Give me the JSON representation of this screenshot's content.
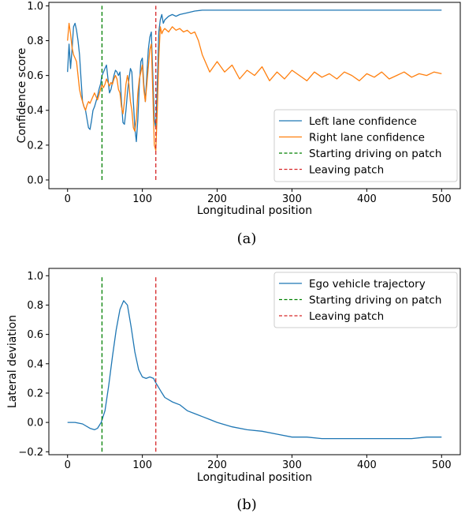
{
  "chart_data": [
    {
      "type": "line",
      "caption": "(a)",
      "xlabel": "Longitudinal position",
      "ylabel": "Confidence score",
      "xlim": [
        -25,
        525
      ],
      "ylim": [
        -0.05,
        1.02
      ],
      "xticks": [
        0,
        100,
        200,
        300,
        400,
        500
      ],
      "yticks": [
        0.0,
        0.2,
        0.4,
        0.6,
        0.8,
        1.0
      ],
      "xtick_labels": [
        "0",
        "100",
        "200",
        "300",
        "400",
        "500"
      ],
      "ytick_labels": [
        "0.0",
        "0.2",
        "0.4",
        "0.6",
        "0.8",
        "1.0"
      ],
      "grid": false,
      "legend_position": "lower-right",
      "series": [
        {
          "name": "Left lane confidence",
          "color": "#1f77b4",
          "style": "solid",
          "x": [
            0,
            2,
            4,
            6,
            8,
            10,
            12,
            14,
            16,
            18,
            20,
            22,
            24,
            26,
            28,
            30,
            32,
            34,
            36,
            38,
            40,
            42,
            44,
            46,
            48,
            50,
            52,
            54,
            56,
            58,
            60,
            62,
            64,
            66,
            68,
            70,
            72,
            74,
            76,
            78,
            80,
            82,
            84,
            86,
            88,
            90,
            92,
            94,
            96,
            98,
            100,
            102,
            104,
            106,
            108,
            110,
            112,
            114,
            116,
            118,
            120,
            122,
            124,
            126,
            128,
            130,
            135,
            140,
            145,
            150,
            160,
            170,
            180,
            200,
            250,
            300,
            350,
            400,
            450,
            500
          ],
          "y": [
            0.62,
            0.78,
            0.64,
            0.75,
            0.88,
            0.9,
            0.86,
            0.8,
            0.72,
            0.58,
            0.45,
            0.42,
            0.4,
            0.35,
            0.3,
            0.29,
            0.34,
            0.4,
            0.42,
            0.45,
            0.48,
            0.52,
            0.55,
            0.6,
            0.62,
            0.64,
            0.66,
            0.58,
            0.5,
            0.52,
            0.56,
            0.6,
            0.63,
            0.62,
            0.6,
            0.62,
            0.45,
            0.33,
            0.32,
            0.4,
            0.5,
            0.58,
            0.64,
            0.62,
            0.45,
            0.3,
            0.22,
            0.35,
            0.55,
            0.68,
            0.7,
            0.55,
            0.45,
            0.6,
            0.75,
            0.82,
            0.85,
            0.6,
            0.35,
            0.3,
            0.55,
            0.85,
            0.92,
            0.95,
            0.9,
            0.92,
            0.94,
            0.95,
            0.94,
            0.95,
            0.96,
            0.97,
            0.975,
            0.975,
            0.975,
            0.975,
            0.975,
            0.975,
            0.975,
            0.975
          ]
        },
        {
          "name": "Right lane confidence",
          "color": "#ff7f0e",
          "style": "solid",
          "x": [
            0,
            2,
            4,
            6,
            8,
            10,
            12,
            14,
            16,
            18,
            20,
            22,
            24,
            26,
            28,
            30,
            32,
            34,
            36,
            38,
            40,
            42,
            44,
            46,
            48,
            50,
            52,
            54,
            56,
            58,
            60,
            62,
            64,
            66,
            68,
            70,
            72,
            74,
            76,
            78,
            80,
            82,
            84,
            86,
            88,
            90,
            92,
            94,
            96,
            98,
            100,
            102,
            104,
            106,
            108,
            110,
            112,
            114,
            116,
            118,
            120,
            122,
            124,
            126,
            128,
            130,
            135,
            140,
            145,
            150,
            155,
            160,
            165,
            170,
            175,
            180,
            190,
            200,
            210,
            220,
            230,
            240,
            250,
            260,
            270,
            280,
            290,
            300,
            310,
            320,
            330,
            340,
            350,
            360,
            370,
            380,
            390,
            400,
            410,
            420,
            430,
            440,
            450,
            460,
            470,
            480,
            490,
            500
          ],
          "y": [
            0.8,
            0.9,
            0.84,
            0.76,
            0.72,
            0.7,
            0.68,
            0.6,
            0.52,
            0.48,
            0.45,
            0.42,
            0.4,
            0.43,
            0.45,
            0.44,
            0.46,
            0.48,
            0.5,
            0.48,
            0.46,
            0.49,
            0.52,
            0.55,
            0.53,
            0.55,
            0.58,
            0.56,
            0.54,
            0.56,
            0.55,
            0.58,
            0.6,
            0.58,
            0.52,
            0.5,
            0.42,
            0.38,
            0.45,
            0.55,
            0.6,
            0.55,
            0.45,
            0.4,
            0.3,
            0.28,
            0.35,
            0.5,
            0.58,
            0.62,
            0.66,
            0.52,
            0.45,
            0.55,
            0.65,
            0.75,
            0.78,
            0.5,
            0.2,
            0.17,
            0.4,
            0.7,
            0.88,
            0.84,
            0.86,
            0.87,
            0.85,
            0.88,
            0.86,
            0.87,
            0.85,
            0.86,
            0.84,
            0.85,
            0.8,
            0.72,
            0.62,
            0.68,
            0.62,
            0.66,
            0.58,
            0.63,
            0.6,
            0.65,
            0.57,
            0.62,
            0.58,
            0.63,
            0.6,
            0.57,
            0.62,
            0.59,
            0.61,
            0.58,
            0.62,
            0.6,
            0.57,
            0.61,
            0.59,
            0.62,
            0.58,
            0.6,
            0.62,
            0.59,
            0.61,
            0.6,
            0.62,
            0.61
          ]
        },
        {
          "name": "Starting driving on patch",
          "color": "#008000",
          "style": "dashed",
          "x": [
            46,
            46
          ],
          "y": [
            0.0,
            1.0
          ]
        },
        {
          "name": "Leaving patch",
          "color": "#d62728",
          "style": "dashed",
          "x": [
            118,
            118
          ],
          "y": [
            0.0,
            1.0
          ]
        }
      ]
    },
    {
      "type": "line",
      "caption": "(b)",
      "xlabel": "Longitudinal position",
      "ylabel": "Lateral deviation",
      "xlim": [
        -25,
        525
      ],
      "ylim": [
        -0.22,
        1.05
      ],
      "xticks": [
        0,
        100,
        200,
        300,
        400,
        500
      ],
      "yticks": [
        -0.2,
        0.0,
        0.2,
        0.4,
        0.6,
        0.8,
        1.0
      ],
      "xtick_labels": [
        "0",
        "100",
        "200",
        "300",
        "400",
        "500"
      ],
      "ytick_labels": [
        "−0.2",
        "0.0",
        "0.2",
        "0.4",
        "0.6",
        "0.8",
        "1.0"
      ],
      "grid": false,
      "legend_position": "upper-right",
      "series": [
        {
          "name": "Ego vehicle trajectory",
          "color": "#1f77b4",
          "style": "solid",
          "x": [
            0,
            10,
            20,
            30,
            36,
            40,
            45,
            50,
            55,
            60,
            65,
            70,
            75,
            80,
            85,
            90,
            95,
            100,
            105,
            110,
            115,
            118,
            125,
            130,
            140,
            150,
            160,
            170,
            180,
            190,
            200,
            220,
            240,
            260,
            280,
            300,
            320,
            340,
            360,
            380,
            400,
            420,
            440,
            460,
            480,
            500
          ],
          "y": [
            0.0,
            0.0,
            -0.01,
            -0.04,
            -0.05,
            -0.04,
            0.0,
            0.08,
            0.25,
            0.45,
            0.63,
            0.77,
            0.83,
            0.8,
            0.65,
            0.48,
            0.36,
            0.31,
            0.3,
            0.31,
            0.3,
            0.27,
            0.21,
            0.17,
            0.14,
            0.12,
            0.08,
            0.06,
            0.04,
            0.02,
            0.0,
            -0.03,
            -0.05,
            -0.06,
            -0.08,
            -0.1,
            -0.1,
            -0.11,
            -0.11,
            -0.11,
            -0.11,
            -0.11,
            -0.11,
            -0.11,
            -0.1,
            -0.1
          ]
        },
        {
          "name": "Starting driving on patch",
          "color": "#008000",
          "style": "dashed",
          "x": [
            46,
            46
          ],
          "y": [
            -0.2,
            1.0
          ]
        },
        {
          "name": "Leaving patch",
          "color": "#d62728",
          "style": "dashed",
          "x": [
            118,
            118
          ],
          "y": [
            -0.2,
            1.0
          ]
        }
      ]
    }
  ]
}
